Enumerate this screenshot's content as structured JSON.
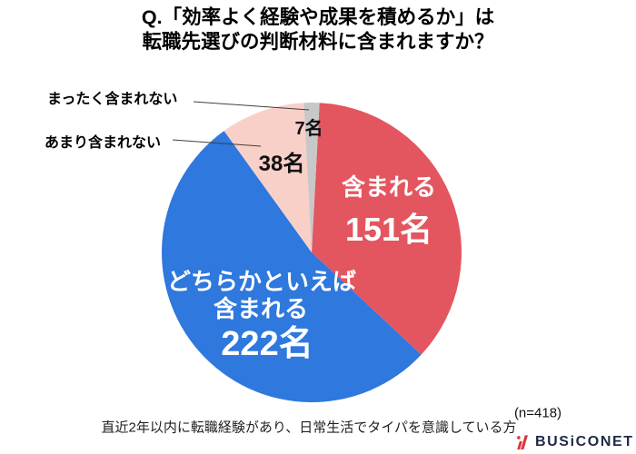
{
  "header": {
    "title_line1": "Q.「効率よく経験や成果を積めるか」は",
    "title_line2": "転職先選びの判断材料に含まれますか？"
  },
  "chart_data": {
    "type": "pie",
    "title": "Q.「効率よく経験や成果を積めるか」は転職先選びの判断材料に含まれますか？",
    "total": 418,
    "unit": "名",
    "direction": "clockwise",
    "start_angle_deg": 3,
    "legend_position": "none",
    "slices": [
      {
        "label": "含まれる",
        "value": 151,
        "display": "151名",
        "color": "#e3565f",
        "text_color": "#ffffff"
      },
      {
        "label": "どちらかといえば含まれる",
        "value": 222,
        "display": "222名",
        "display_lines": [
          "どちらかといえば",
          "含まれる"
        ],
        "color": "#2e78de",
        "text_color": "#ffffff"
      },
      {
        "label": "あまり含まれない",
        "value": 38,
        "display": "38名",
        "color": "#f9d0c8",
        "text_color": "#111111"
      },
      {
        "label": "まったく含まれない",
        "value": 7,
        "display": "7名",
        "color": "#c8c8c8",
        "text_color": "#111111"
      }
    ]
  },
  "footer": {
    "note": "直近2年以内に転職経験があり、日常生活でタイパを意識している方",
    "sample_size": "(n=418)"
  },
  "brand": {
    "name": "BUSiCONET",
    "text_color": "#1e2a47",
    "mark_color": "#d9363e"
  }
}
